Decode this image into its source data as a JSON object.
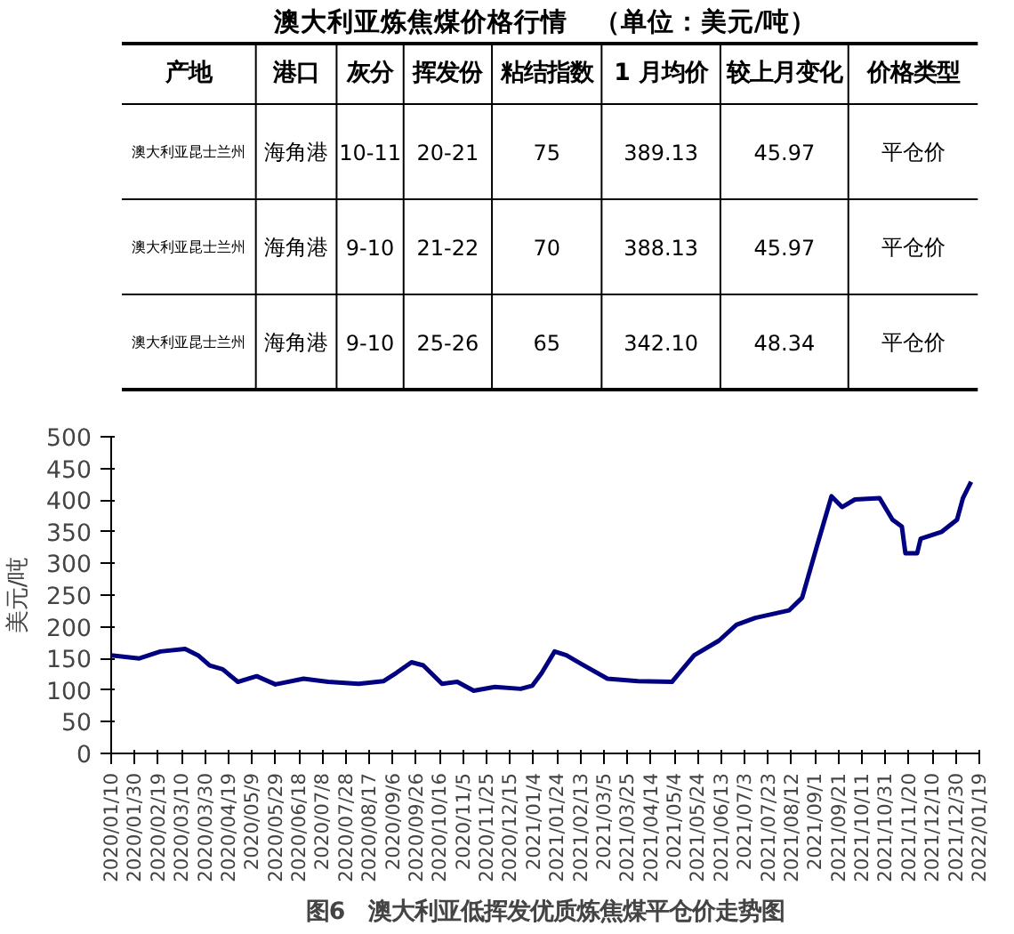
{
  "chart_data": [
    {
      "type": "other",
      "title": "澳大利亚炼焦煤价格行情　（单位：美元/吨）",
      "categories": [
        "产地",
        "港口",
        "灰分",
        "挥发份",
        "粘结指数",
        "1 月均价",
        "较上月变化",
        "价格类型"
      ],
      "annotations": [
        "澳大利亚昆士兰州",
        "海角港",
        "10-11",
        "20-21",
        "75",
        "389.13",
        "45.97",
        "平仓价",
        "澳大利亚昆士兰州",
        "海角港",
        "9-10",
        "21-22",
        "70",
        "388.13",
        "45.97",
        "平仓价",
        "澳大利亚昆士兰州",
        "海角港",
        "9-10",
        "25-26",
        "65",
        "342.10",
        "48.34",
        "平仓价"
      ]
    },
    {
      "type": "line",
      "title": "图6　澳大利亚低挥发优质炼焦煤平仓价走势图",
      "ylabel": "美元/吨",
      "x": [
        "2020-01-10",
        "2020-02-03",
        "2020-02-21",
        "2020-03-13",
        "2020-03-24",
        "2020-04-03",
        "2020-04-14",
        "2020-04-27",
        "2020-05-13",
        "2020-05-29",
        "2020-06-22",
        "2020-07-13",
        "2020-08-08",
        "2020-08-29",
        "2020-09-09",
        "2020-09-22",
        "2020-10-02",
        "2020-10-18",
        "2020-10-31",
        "2020-11-14",
        "2020-12-02",
        "2020-12-24",
        "2021-01-03",
        "2021-01-11",
        "2021-01-22",
        "2021-02-01",
        "2021-02-14",
        "2021-03-08",
        "2021-04-03",
        "2021-05-02",
        "2021-05-21",
        "2021-06-11",
        "2021-06-26",
        "2021-07-12",
        "2021-08-10",
        "2021-08-21",
        "2021-09-03",
        "2021-09-15",
        "2021-09-24",
        "2021-10-05",
        "2021-10-26",
        "2021-11-06",
        "2021-11-14",
        "2021-11-17",
        "2021-11-27",
        "2021-11-30",
        "2021-12-18",
        "2021-12-31",
        "2022-01-05",
        "2022-01-12"
      ],
      "series": [
        {
          "color": "#000080",
          "values": [
            155,
            150,
            161,
            165,
            155,
            139,
            133,
            113,
            122,
            109,
            118,
            113,
            110,
            114,
            127,
            144,
            139,
            110,
            113,
            99,
            105,
            102,
            107,
            127,
            161,
            155,
            141,
            118,
            114,
            113,
            155,
            178,
            203,
            214,
            226,
            246,
            330,
            406,
            389,
            401,
            403,
            369,
            358,
            316,
            316,
            339,
            350,
            369,
            403,
            429
          ]
        }
      ],
      "xlim": [
        "2020-01-10",
        "2022-01-19"
      ],
      "xticks": [
        {
          "value": "2020-01-10",
          "label": "2020/01/10"
        },
        {
          "value": "2020-01-30",
          "label": "2020/01/30"
        },
        {
          "value": "2020-02-19",
          "label": "2020/02/19"
        },
        {
          "value": "2020-03-10",
          "label": "2020/03/10"
        },
        {
          "value": "2020-03-30",
          "label": "2020/03/30"
        },
        {
          "value": "2020-04-19",
          "label": "2020/04/19"
        },
        {
          "value": "2020-05-09",
          "label": "2020/05/9"
        },
        {
          "value": "2020-05-29",
          "label": "2020/05/29"
        },
        {
          "value": "2020-06-18",
          "label": "2020/06/18"
        },
        {
          "value": "2020-07-08",
          "label": "2020/07/8"
        },
        {
          "value": "2020-07-28",
          "label": "2020/07/28"
        },
        {
          "value": "2020-08-17",
          "label": "2020/08/17"
        },
        {
          "value": "2020-09-06",
          "label": "2020/09/6"
        },
        {
          "value": "2020-09-26",
          "label": "2020/09/26"
        },
        {
          "value": "2020-10-16",
          "label": "2020/10/16"
        },
        {
          "value": "2020-11-05",
          "label": "2020/11/5"
        },
        {
          "value": "2020-11-25",
          "label": "2020/11/25"
        },
        {
          "value": "2020-12-15",
          "label": "2020/12/15"
        },
        {
          "value": "2021-01-04",
          "label": "2021/01/4"
        },
        {
          "value": "2021-01-24",
          "label": "2021/01/24"
        },
        {
          "value": "2021-02-13",
          "label": "2021/02/13"
        },
        {
          "value": "2021-03-05",
          "label": "2021/03/5"
        },
        {
          "value": "2021-03-25",
          "label": "2021/03/25"
        },
        {
          "value": "2021-04-14",
          "label": "2021/04/14"
        },
        {
          "value": "2021-05-04",
          "label": "2021/05/4"
        },
        {
          "value": "2021-05-24",
          "label": "2021/05/24"
        },
        {
          "value": "2021-06-13",
          "label": "2021/06/13"
        },
        {
          "value": "2021-07-03",
          "label": "2021/07/3"
        },
        {
          "value": "2021-07-23",
          "label": "2021/07/23"
        },
        {
          "value": "2021-08-12",
          "label": "2021/08/12"
        },
        {
          "value": "2021-09-01",
          "label": "2021/09/1"
        },
        {
          "value": "2021-09-21",
          "label": "2021/09/21"
        },
        {
          "value": "2021-10-11",
          "label": "2021/10/11"
        },
        {
          "value": "2021-10-31",
          "label": "2021/10/31"
        },
        {
          "value": "2021-11-20",
          "label": "2021/11/20"
        },
        {
          "value": "2021-12-10",
          "label": "2021/12/10"
        },
        {
          "value": "2021-12-30",
          "label": "2021/12/30"
        },
        {
          "value": "2022-01-19",
          "label": "2022/01/19"
        }
      ],
      "ylim": [
        0,
        500
      ],
      "yticks": [
        0,
        50,
        100,
        150,
        200,
        250,
        300,
        350,
        400,
        450,
        500
      ],
      "grid": false,
      "marker": "none",
      "line_style": "solid"
    }
  ]
}
